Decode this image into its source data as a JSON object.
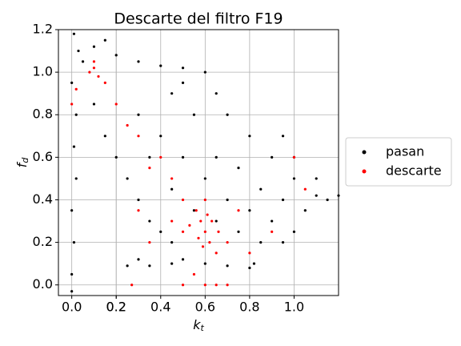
{
  "chart_data": {
    "type": "scatter",
    "title": "Descarte del filtro F19",
    "xlabel": {
      "text": "k",
      "subscript": "t"
    },
    "ylabel": {
      "text": "f",
      "subscript": "d"
    },
    "xlim": [
      -0.06,
      1.2
    ],
    "ylim": [
      -0.05,
      1.2
    ],
    "xticks": [
      {
        "value": 0,
        "label": "0.0"
      },
      0.2,
      0.4,
      0.6,
      0.8,
      {
        "value": 1,
        "label": "1.0"
      },
      0.2
    ],
    "yticks": [
      {
        "value": 0,
        "label": "0.0"
      },
      0.2,
      0.4,
      0.6,
      0.8,
      {
        "value": 1,
        "label": "1.0"
      },
      1.2
    ],
    "grid": true,
    "legend": "center right outside",
    "series": [
      {
        "name": "pasan",
        "color": "#000000",
        "x": [
          0.0,
          0.01,
          0.0,
          0.02,
          0.01,
          0.02,
          0.0,
          0.03,
          0.01,
          0.0,
          0.1,
          0.2,
          0.3,
          0.4,
          0.5,
          0.6,
          0.15,
          0.05,
          0.65,
          0.7,
          0.8,
          0.9,
          1.0,
          1.1,
          1.15,
          1.2,
          0.3,
          0.4,
          0.5,
          0.6,
          0.7,
          0.8,
          0.9,
          0.45,
          0.55,
          0.65,
          0.75,
          0.85,
          0.95,
          1.05,
          0.35,
          0.45,
          0.55,
          0.65,
          0.75,
          0.85,
          0.95,
          1.0,
          0.1,
          0.15,
          0.2,
          0.25,
          0.3,
          0.35,
          0.4,
          0.45,
          0.5,
          0.6,
          0.7,
          0.8,
          0.82,
          0.25,
          0.35,
          0.45,
          0.3,
          0.95,
          1.1,
          1.0,
          0.5
        ],
        "y": [
          0.05,
          0.2,
          0.35,
          0.5,
          0.65,
          0.8,
          0.95,
          1.1,
          1.18,
          -0.03,
          1.12,
          1.08,
          1.05,
          1.03,
          1.02,
          1.0,
          1.15,
          1.05,
          0.9,
          0.8,
          0.7,
          0.6,
          0.5,
          0.42,
          0.4,
          0.42,
          0.8,
          0.7,
          0.6,
          0.5,
          0.4,
          0.35,
          0.3,
          0.9,
          0.8,
          0.6,
          0.55,
          0.45,
          0.4,
          0.35,
          0.6,
          0.45,
          0.35,
          0.3,
          0.25,
          0.2,
          0.2,
          0.25,
          0.85,
          0.7,
          0.6,
          0.5,
          0.4,
          0.3,
          0.25,
          0.2,
          0.12,
          0.1,
          0.09,
          0.08,
          0.1,
          0.09,
          0.09,
          0.1,
          0.12,
          0.7,
          0.5,
          0.6,
          0.95
        ]
      },
      {
        "name": "descarte",
        "color": "#ff0000",
        "x": [
          0.1,
          0.08,
          0.12,
          0.1,
          0.3,
          0.4,
          0.45,
          0.2,
          0.35,
          0.7,
          0.8,
          0.9,
          1.0,
          1.05,
          0.5,
          0.65,
          0.55,
          0.6,
          0.65,
          0.7,
          0.5,
          0.27,
          0.02,
          0.0,
          0.6,
          0.58,
          0.62,
          0.56,
          0.6,
          0.57,
          0.63,
          0.53,
          0.59,
          0.61,
          0.66,
          0.5,
          0.45,
          0.75,
          0.35,
          0.3,
          0.25,
          0.15
        ],
        "y": [
          1.02,
          1.0,
          0.98,
          1.05,
          0.7,
          0.6,
          0.5,
          0.85,
          0.55,
          0.2,
          0.15,
          0.25,
          0.6,
          0.45,
          0.25,
          0.15,
          0.05,
          0.0,
          0.0,
          0.0,
          0.0,
          0.0,
          0.92,
          0.85,
          0.25,
          0.3,
          0.2,
          0.35,
          0.4,
          0.22,
          0.3,
          0.28,
          0.18,
          0.33,
          0.25,
          0.4,
          0.3,
          0.35,
          0.2,
          0.35,
          0.75,
          0.95
        ]
      }
    ]
  }
}
